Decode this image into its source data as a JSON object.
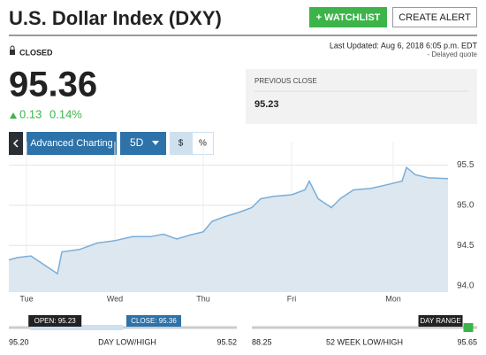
{
  "header": {
    "title": "U.S. Dollar Index (DXY)",
    "watchlist": "+ WATCHLIST",
    "alert": "CREATE ALERT"
  },
  "status": "CLOSED",
  "last_updated": "Last Updated: Aug 6, 2018 6:05 p.m. EDT",
  "delayed": "- Delayed quote",
  "price": "95.36",
  "change": "0.13",
  "change_pct": "0.14%",
  "previous_close": {
    "label": "PREVIOUS CLOSE",
    "value": "95.23"
  },
  "controls": {
    "advanced": "Advanced Charting",
    "range": "5D",
    "dollar": "$",
    "percent": "%"
  },
  "chart_data": {
    "type": "line",
    "color": "#7aaed8",
    "fill": "#dde7f0",
    "x": [
      -0.2,
      -0.1,
      0.05,
      0.2,
      0.35,
      0.4,
      0.6,
      0.8,
      1.0,
      1.2,
      1.4,
      1.55,
      1.7,
      1.85,
      2.0,
      2.1,
      2.25,
      2.4,
      2.55,
      2.65,
      2.8,
      3.0,
      3.15,
      3.2,
      3.3,
      3.45,
      3.55,
      3.7,
      3.9,
      4.1,
      4.25,
      4.3,
      4.4,
      4.55,
      4.77
    ],
    "values": [
      94.32,
      94.35,
      94.37,
      94.26,
      94.15,
      94.42,
      94.45,
      94.53,
      94.56,
      94.61,
      94.61,
      94.64,
      94.58,
      94.63,
      94.67,
      94.8,
      94.86,
      94.91,
      94.97,
      95.08,
      95.11,
      95.13,
      95.19,
      95.3,
      95.08,
      94.97,
      95.08,
      95.19,
      95.21,
      95.26,
      95.3,
      95.47,
      95.38,
      95.34,
      95.33
    ],
    "xlim": [
      -0.2,
      4.77
    ],
    "xticks": [
      {
        "value": 0,
        "label": "Tue"
      },
      {
        "value": 1,
        "label": "Wed"
      },
      {
        "value": 2,
        "label": "Thu"
      },
      {
        "value": 3,
        "label": "Fri"
      },
      {
        "value": 4.15,
        "label": "Mon"
      }
    ],
    "ylim": [
      93.92,
      95.79
    ],
    "yticks": [
      95.5,
      {
        "value": 95.0,
        "label": "95.0"
      },
      94.5,
      {
        "value": 94.0,
        "label": "94.0"
      }
    ],
    "grid": true
  },
  "day_range": {
    "title": "DAY LOW/HIGH",
    "low": {
      "value": 95.2,
      "label": "95.20"
    },
    "high": 95.52,
    "open": {
      "value": 95.23,
      "label": "OPEN: 95.23"
    },
    "close": {
      "value": 95.36,
      "label": "CLOSE: 95.36"
    }
  },
  "week52": {
    "title": "52 WEEK LOW/HIGH",
    "low": 88.25,
    "high": 95.65,
    "marker": "DAY RANGE"
  }
}
